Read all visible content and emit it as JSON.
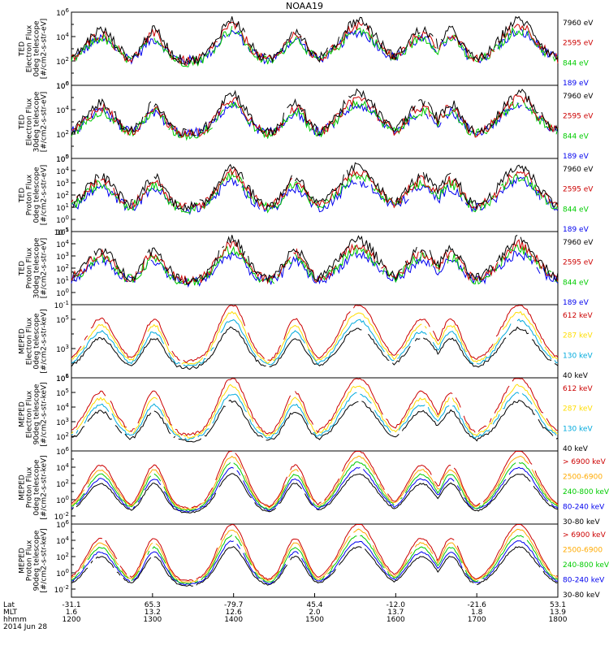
{
  "title": "NOAA19",
  "chart_data": {
    "type": "line",
    "title": "NOAA19",
    "time_axis": {
      "ticks": [
        "1200",
        "1300",
        "1400",
        "1500",
        "1600",
        "1700",
        "1800"
      ],
      "xlim": [
        "1200",
        "1800"
      ],
      "rows": [
        {
          "label": "Lat",
          "values": [
            "-31.1",
            "65.3",
            "-79.7",
            "45.4",
            "-12.0",
            "-21.6",
            "53.1"
          ]
        },
        {
          "label": "MLT",
          "values": [
            "1.6",
            "13.2",
            "12.6",
            "2.0",
            "13.7",
            "1.8",
            "13.9"
          ]
        },
        {
          "label": "hhmm",
          "values": [
            "1200",
            "1300",
            "1400",
            "1500",
            "1600",
            "1700",
            "1800"
          ]
        }
      ],
      "date": "2014 Jun 28"
    },
    "panels": [
      {
        "ylabel": [
          "TED",
          "Electron Flux",
          "0deg telescope",
          "[#/cm2-s-str-eV]"
        ],
        "yscale": "log",
        "ylim": [
          0,
          6
        ],
        "yticks": [
          "10^0",
          "10^2",
          "10^4",
          "10^6"
        ],
        "legend": [
          {
            "name": "7960 eV",
            "color": "#000000"
          },
          {
            "name": "2595 eV",
            "color": "#cc0000"
          },
          {
            "name": "844 eV",
            "color": "#00cc00"
          },
          {
            "name": "189 eV",
            "color": "#0000ee"
          }
        ]
      },
      {
        "ylabel": [
          "TED",
          "Electron Flux",
          "30deg telescope",
          "[#/cm2-s-str-eV]"
        ],
        "yscale": "log",
        "ylim": [
          0,
          6
        ],
        "yticks": [
          "10^0",
          "10^2",
          "10^4",
          "10^6"
        ],
        "legend": [
          {
            "name": "7960 eV",
            "color": "#000000"
          },
          {
            "name": "2595 eV",
            "color": "#cc0000"
          },
          {
            "name": "844 eV",
            "color": "#00cc00"
          },
          {
            "name": "189 eV",
            "color": "#0000ee"
          }
        ]
      },
      {
        "ylabel": [
          "TED",
          "Proton Flux",
          "0deg telescope",
          "[#/cm2-s-str-eV]"
        ],
        "yscale": "log",
        "ylim": [
          -1,
          5
        ],
        "yticks": [
          "10^-1",
          "10^0",
          "10^1",
          "10^2",
          "10^3",
          "10^4",
          "10^5"
        ],
        "legend": [
          {
            "name": "7960 eV",
            "color": "#000000"
          },
          {
            "name": "2595 eV",
            "color": "#cc0000"
          },
          {
            "name": "844 eV",
            "color": "#00cc00"
          },
          {
            "name": "189 eV",
            "color": "#0000ee"
          }
        ]
      },
      {
        "ylabel": [
          "TED",
          "Proton Flux",
          "30deg telescope",
          "[#/cm2-s-str-eV]"
        ],
        "yscale": "log",
        "ylim": [
          -1,
          5
        ],
        "yticks": [
          "10^-1",
          "10^0",
          "10^1",
          "10^2",
          "10^3",
          "10^4",
          "10^5"
        ],
        "legend": [
          {
            "name": "7960 eV",
            "color": "#000000"
          },
          {
            "name": "2595 eV",
            "color": "#cc0000"
          },
          {
            "name": "844 eV",
            "color": "#00cc00"
          },
          {
            "name": "189 eV",
            "color": "#0000ee"
          }
        ]
      },
      {
        "ylabel": [
          "MEPED",
          "Electron Flux",
          "0deg telescope",
          "[#/cm2-s-str-keV]"
        ],
        "yscale": "log",
        "ylim": [
          1,
          6
        ],
        "yticks": [
          "10^1",
          "10^3",
          "10^5"
        ],
        "legend": [
          {
            "name": "612 keV",
            "color": "#cc0000"
          },
          {
            "name": "287 keV",
            "color": "#ffdd00"
          },
          {
            "name": "130 keV",
            "color": "#00aadd"
          },
          {
            "name": "40 keV",
            "color": "#000000"
          }
        ]
      },
      {
        "ylabel": [
          "MEPED",
          "Electron Flux",
          "90deg telescope",
          "[#/cm2-s-str-keV]"
        ],
        "yscale": "log",
        "ylim": [
          1,
          6
        ],
        "yticks": [
          "10^2",
          "10^3",
          "10^4",
          "10^5",
          "10^6"
        ],
        "legend": [
          {
            "name": "612 keV",
            "color": "#cc0000"
          },
          {
            "name": "287 keV",
            "color": "#ffdd00"
          },
          {
            "name": "130 keV",
            "color": "#00aadd"
          },
          {
            "name": "40 keV",
            "color": "#000000"
          }
        ]
      },
      {
        "ylabel": [
          "MEPED",
          "Proton Flux",
          "0deg telescope",
          "[#/cm2-s-str-keV]"
        ],
        "yscale": "log",
        "ylim": [
          -3,
          6
        ],
        "yticks": [
          "10^-2",
          "10^0",
          "10^2",
          "10^4",
          "10^6"
        ],
        "legend": [
          {
            "name": "> 6900 keV",
            "color": "#cc0000"
          },
          {
            "name": "2500-6900",
            "color": "#ffaa00"
          },
          {
            "name": "240-800 keV",
            "color": "#00cc00"
          },
          {
            "name": "80-240 keV",
            "color": "#0000ee"
          },
          {
            "name": "30-80 keV",
            "color": "#000000"
          }
        ]
      },
      {
        "ylabel": [
          "MEPED",
          "Proton Flux",
          "90deg telescope",
          "[#/cm2-s-str-keV]"
        ],
        "yscale": "log",
        "ylim": [
          -3,
          6
        ],
        "yticks": [
          "10^-2",
          "10^0",
          "10^2",
          "10^4",
          "10^6"
        ],
        "legend": [
          {
            "name": "> 6900 keV",
            "color": "#cc0000"
          },
          {
            "name": "2500-6900",
            "color": "#ffaa00"
          },
          {
            "name": "240-800 keV",
            "color": "#00cc00"
          },
          {
            "name": "80-240 keV",
            "color": "#0000ee"
          },
          {
            "name": "30-80 keV",
            "color": "#000000"
          }
        ]
      }
    ],
    "grid": false
  }
}
